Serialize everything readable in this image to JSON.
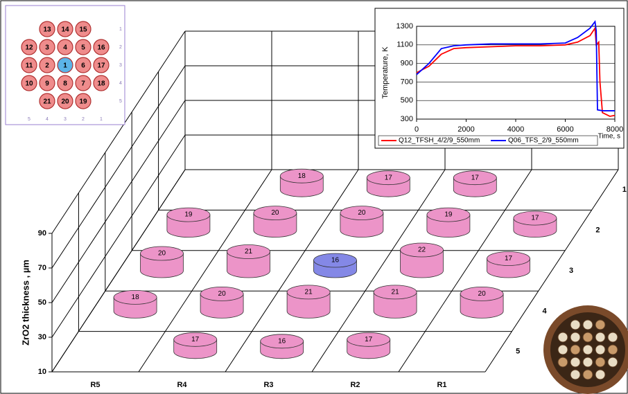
{
  "chart_data": [
    {
      "type": "bar3d",
      "y_label": "ZrO2 thickness , µm",
      "categories": [
        "R5",
        "R4",
        "R3",
        "R2",
        "R1"
      ],
      "rows": [
        "1",
        "2",
        "3",
        "4",
        "5"
      ],
      "values": [
        [
          null,
          18,
          17,
          17,
          null
        ],
        [
          19,
          20,
          20,
          19,
          17
        ],
        [
          20,
          21,
          16,
          22,
          17
        ],
        [
          18,
          20,
          21,
          21,
          20
        ],
        [
          null,
          17,
          16,
          17,
          null
        ]
      ],
      "color": "#ec94c8",
      "highlight_cell": [
        2,
        2
      ],
      "highlight_color": "#8488e6",
      "ylim": [
        10,
        90
      ],
      "yticks": [
        10,
        30,
        50,
        70,
        90
      ],
      "grid": true
    },
    {
      "type": "line",
      "x_label": "Time, s",
      "y_label": "Temperature, K",
      "xlim": [
        0,
        8000
      ],
      "xticks": [
        0,
        2000,
        4000,
        6000,
        8000
      ],
      "ylim": [
        300,
        1300
      ],
      "yticks": [
        300,
        500,
        700,
        900,
        1100,
        1300
      ],
      "legend": "bottom",
      "series": [
        {
          "name": "Q12_TFSH_4/2/9_550mm",
          "color": "#ff0000",
          "x": [
            0,
            500,
            1000,
            1500,
            2000,
            3000,
            4000,
            5000,
            6000,
            6500,
            7000,
            7200,
            7250,
            7350,
            7400,
            7500,
            7800,
            8000
          ],
          "values": [
            800,
            870,
            1000,
            1060,
            1070,
            1080,
            1090,
            1090,
            1100,
            1130,
            1200,
            1280,
            1100,
            1130,
            700,
            370,
            330,
            340
          ]
        },
        {
          "name": "Q06_TFS_2/9_550mm",
          "color": "#0000ff",
          "x": [
            0,
            500,
            1000,
            1500,
            2000,
            3000,
            4000,
            5000,
            6000,
            6500,
            7000,
            7200,
            7250,
            7300,
            7500,
            8000
          ],
          "values": [
            780,
            900,
            1060,
            1090,
            1100,
            1110,
            1110,
            1110,
            1120,
            1180,
            1280,
            1350,
            1250,
            400,
            390,
            390
          ]
        }
      ]
    }
  ],
  "rod_map": {
    "rods": [
      [
        null,
        "13",
        "14",
        "15",
        null
      ],
      [
        "12",
        "3",
        "4",
        "5",
        "16"
      ],
      [
        "11",
        "2",
        "1",
        "6",
        "17"
      ],
      [
        "10",
        "9",
        "8",
        "7",
        "18"
      ],
      [
        null,
        "21",
        "20",
        "19",
        null
      ]
    ],
    "highlight": [
      2,
      2
    ],
    "column_labels": [
      "5",
      "4",
      "3",
      "2",
      "1"
    ],
    "row_labels": [
      "1",
      "2",
      "3",
      "4",
      "5"
    ]
  }
}
